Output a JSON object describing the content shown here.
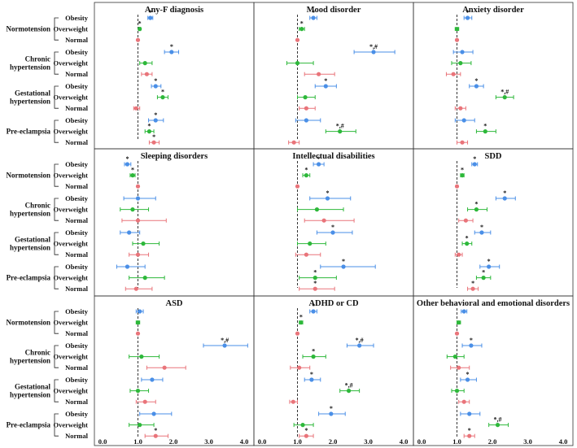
{
  "chart_data": {
    "type": "forest",
    "groups": [
      "Normotension",
      "Chronic hypertension",
      "Gestational hypertension",
      "Pre-eclampsia"
    ],
    "group_lines": [
      [
        "Normotension"
      ],
      [
        "Chronic",
        "hypertension"
      ],
      [
        "Gestational",
        "hypertension"
      ],
      [
        "Pre-eclampsia"
      ]
    ],
    "categories": [
      "Obesity",
      "Overweight",
      "Normal"
    ],
    "x_ticks": [
      "0.0",
      "1.0",
      "2.0",
      "3.0",
      "4.0"
    ],
    "xlim": [
      0,
      4
    ],
    "reference_line": 1.0,
    "colors": {
      "Obesity": "#4a8fe7",
      "Overweight": "#2db83a",
      "Normal": "#e9747a"
    },
    "panels": [
      {
        "title": "Any-F diagnosis",
        "rows": [
          {
            "est": 1.35,
            "lo": 1.28,
            "hi": 1.42,
            "mark": "*"
          },
          {
            "est": 1.05,
            "lo": 1.02,
            "hi": 1.08,
            "mark": "*"
          },
          {
            "est": 1.0,
            "lo": 1.0,
            "hi": 1.0,
            "mark": ""
          },
          {
            "est": 1.95,
            "lo": 1.75,
            "hi": 2.15,
            "mark": "*"
          },
          {
            "est": 1.2,
            "lo": 1.05,
            "hi": 1.4,
            "mark": ""
          },
          {
            "est": 1.25,
            "lo": 1.1,
            "hi": 1.4,
            "mark": ""
          },
          {
            "est": 1.5,
            "lo": 1.38,
            "hi": 1.65,
            "mark": "*"
          },
          {
            "est": 1.7,
            "lo": 1.55,
            "hi": 1.85,
            "mark": "*"
          },
          {
            "est": 0.95,
            "lo": 0.88,
            "hi": 1.05,
            "mark": ""
          },
          {
            "est": 1.5,
            "lo": 1.3,
            "hi": 1.72,
            "mark": "*"
          },
          {
            "est": 1.32,
            "lo": 1.2,
            "hi": 1.45,
            "mark": "*"
          },
          {
            "est": 1.45,
            "lo": 1.32,
            "hi": 1.6,
            "mark": "*"
          }
        ]
      },
      {
        "title": "Mood disorder",
        "rows": [
          {
            "est": 1.45,
            "lo": 1.35,
            "hi": 1.55,
            "mark": "*"
          },
          {
            "est": 1.12,
            "lo": 1.05,
            "hi": 1.2,
            "mark": "*"
          },
          {
            "est": 1.0,
            "lo": 1.0,
            "hi": 1.0,
            "mark": ""
          },
          {
            "est": 3.15,
            "lo": 2.6,
            "hi": 3.75,
            "mark": "*,#"
          },
          {
            "est": 1.0,
            "lo": 0.7,
            "hi": 1.45,
            "mark": ""
          },
          {
            "est": 1.6,
            "lo": 1.2,
            "hi": 2.05,
            "mark": ""
          },
          {
            "est": 1.8,
            "lo": 1.5,
            "hi": 2.1,
            "mark": "*"
          },
          {
            "est": 1.22,
            "lo": 1.0,
            "hi": 1.5,
            "mark": ""
          },
          {
            "est": 1.25,
            "lo": 1.05,
            "hi": 1.5,
            "mark": ""
          },
          {
            "est": 1.25,
            "lo": 0.95,
            "hi": 1.65,
            "mark": ""
          },
          {
            "est": 2.2,
            "lo": 1.8,
            "hi": 2.65,
            "mark": "*,#"
          },
          {
            "est": 0.9,
            "lo": 0.75,
            "hi": 1.05,
            "mark": ""
          }
        ]
      },
      {
        "title": "Anxiety disorder",
        "rows": [
          {
            "est": 1.3,
            "lo": 1.2,
            "hi": 1.42,
            "mark": "*"
          },
          {
            "est": 1.0,
            "lo": 0.95,
            "hi": 1.05,
            "mark": ""
          },
          {
            "est": 1.0,
            "lo": 1.0,
            "hi": 1.0,
            "mark": ""
          },
          {
            "est": 1.15,
            "lo": 0.9,
            "hi": 1.45,
            "mark": ""
          },
          {
            "est": 1.1,
            "lo": 0.85,
            "hi": 1.4,
            "mark": ""
          },
          {
            "est": 0.9,
            "lo": 0.7,
            "hi": 1.1,
            "mark": ""
          },
          {
            "est": 1.55,
            "lo": 1.35,
            "hi": 1.75,
            "mark": "*"
          },
          {
            "est": 2.35,
            "lo": 2.1,
            "hi": 2.6,
            "mark": "*,#"
          },
          {
            "est": 1.1,
            "lo": 0.95,
            "hi": 1.25,
            "mark": ""
          },
          {
            "est": 1.2,
            "lo": 0.95,
            "hi": 1.5,
            "mark": ""
          },
          {
            "est": 1.8,
            "lo": 1.55,
            "hi": 2.1,
            "mark": "*"
          },
          {
            "est": 1.15,
            "lo": 1.0,
            "hi": 1.3,
            "mark": ""
          }
        ]
      },
      {
        "title": "Sleeping disorders",
        "rows": [
          {
            "est": 0.7,
            "lo": 0.62,
            "hi": 0.8,
            "mark": "*"
          },
          {
            "est": 0.85,
            "lo": 0.78,
            "hi": 0.92,
            "mark": "*"
          },
          {
            "est": 1.0,
            "lo": 1.0,
            "hi": 1.0,
            "mark": ""
          },
          {
            "est": 1.0,
            "lo": 0.6,
            "hi": 1.5,
            "mark": ""
          },
          {
            "est": 0.85,
            "lo": 0.5,
            "hi": 1.3,
            "mark": ""
          },
          {
            "est": 1.0,
            "lo": 0.55,
            "hi": 1.8,
            "mark": ""
          },
          {
            "est": 0.75,
            "lo": 0.5,
            "hi": 1.05,
            "mark": ""
          },
          {
            "est": 1.15,
            "lo": 0.85,
            "hi": 1.6,
            "mark": ""
          },
          {
            "est": 1.0,
            "lo": 0.75,
            "hi": 1.3,
            "mark": ""
          },
          {
            "est": 0.7,
            "lo": 0.4,
            "hi": 1.2,
            "mark": ""
          },
          {
            "est": 1.2,
            "lo": 0.75,
            "hi": 1.75,
            "mark": ""
          },
          {
            "est": 0.95,
            "lo": 0.65,
            "hi": 1.4,
            "mark": ""
          }
        ]
      },
      {
        "title": "Intellectual disabilities",
        "rows": [
          {
            "est": 1.6,
            "lo": 1.45,
            "hi": 1.75,
            "mark": "*"
          },
          {
            "est": 1.25,
            "lo": 1.15,
            "hi": 1.35,
            "mark": "*"
          },
          {
            "est": 1.0,
            "lo": 1.0,
            "hi": 1.0,
            "mark": ""
          },
          {
            "est": 1.85,
            "lo": 1.35,
            "hi": 2.5,
            "mark": "*"
          },
          {
            "est": 1.55,
            "lo": 1.0,
            "hi": 2.3,
            "mark": ""
          },
          {
            "est": 1.75,
            "lo": 1.2,
            "hi": 2.6,
            "mark": ""
          },
          {
            "est": 2.0,
            "lo": 1.55,
            "hi": 2.55,
            "mark": "*"
          },
          {
            "est": 1.35,
            "lo": 1.0,
            "hi": 1.8,
            "mark": ""
          },
          {
            "est": 1.25,
            "lo": 0.95,
            "hi": 1.65,
            "mark": ""
          },
          {
            "est": 2.3,
            "lo": 1.65,
            "hi": 3.2,
            "mark": "*"
          },
          {
            "est": 1.5,
            "lo": 1.05,
            "hi": 2.1,
            "mark": "*"
          },
          {
            "est": 1.5,
            "lo": 1.05,
            "hi": 2.05,
            "mark": "*"
          }
        ]
      },
      {
        "title": "SDD",
        "rows": [
          {
            "est": 1.5,
            "lo": 1.42,
            "hi": 1.58,
            "mark": "*"
          },
          {
            "est": 1.15,
            "lo": 1.1,
            "hi": 1.2,
            "mark": "*"
          },
          {
            "est": 1.0,
            "lo": 1.0,
            "hi": 1.0,
            "mark": ""
          },
          {
            "est": 2.35,
            "lo": 2.1,
            "hi": 2.65,
            "mark": "*"
          },
          {
            "est": 1.55,
            "lo": 1.3,
            "hi": 1.85,
            "mark": "*"
          },
          {
            "est": 1.25,
            "lo": 1.05,
            "hi": 1.45,
            "mark": ""
          },
          {
            "est": 1.7,
            "lo": 1.5,
            "hi": 1.95,
            "mark": "*"
          },
          {
            "est": 1.28,
            "lo": 1.15,
            "hi": 1.42,
            "mark": "*"
          },
          {
            "est": 1.05,
            "lo": 0.95,
            "hi": 1.15,
            "mark": ""
          },
          {
            "est": 1.9,
            "lo": 1.65,
            "hi": 2.2,
            "mark": "*"
          },
          {
            "est": 1.75,
            "lo": 1.55,
            "hi": 1.95,
            "mark": "*"
          },
          {
            "est": 1.45,
            "lo": 1.3,
            "hi": 1.6,
            "mark": "*"
          }
        ]
      },
      {
        "title": "ASD",
        "rows": [
          {
            "est": 1.05,
            "lo": 0.95,
            "hi": 1.15,
            "mark": ""
          },
          {
            "est": 1.0,
            "lo": 0.95,
            "hi": 1.05,
            "mark": ""
          },
          {
            "est": 1.0,
            "lo": 1.0,
            "hi": 1.0,
            "mark": ""
          },
          {
            "est": 3.45,
            "lo": 2.85,
            "hi": 4.1,
            "mark": "*,#"
          },
          {
            "est": 1.1,
            "lo": 0.75,
            "hi": 1.6,
            "mark": ""
          },
          {
            "est": 1.75,
            "lo": 1.25,
            "hi": 2.35,
            "mark": ""
          },
          {
            "est": 1.4,
            "lo": 1.1,
            "hi": 1.7,
            "mark": ""
          },
          {
            "est": 1.0,
            "lo": 0.78,
            "hi": 1.3,
            "mark": ""
          },
          {
            "est": 1.2,
            "lo": 0.95,
            "hi": 1.5,
            "mark": ""
          },
          {
            "est": 1.45,
            "lo": 1.05,
            "hi": 1.95,
            "mark": ""
          },
          {
            "est": 1.05,
            "lo": 0.75,
            "hi": 1.45,
            "mark": ""
          },
          {
            "est": 1.5,
            "lo": 1.2,
            "hi": 1.85,
            "mark": "*"
          }
        ]
      },
      {
        "title": "ADHD or CD",
        "rows": [
          {
            "est": 1.45,
            "lo": 1.35,
            "hi": 1.55,
            "mark": "*"
          },
          {
            "est": 1.1,
            "lo": 1.05,
            "hi": 1.15,
            "mark": "*"
          },
          {
            "est": 1.0,
            "lo": 1.0,
            "hi": 1.0,
            "mark": ""
          },
          {
            "est": 2.75,
            "lo": 2.4,
            "hi": 3.15,
            "mark": "*,#"
          },
          {
            "est": 1.45,
            "lo": 1.15,
            "hi": 1.8,
            "mark": "*"
          },
          {
            "est": 1.05,
            "lo": 0.8,
            "hi": 1.35,
            "mark": ""
          },
          {
            "est": 1.4,
            "lo": 1.2,
            "hi": 1.65,
            "mark": "*"
          },
          {
            "est": 2.45,
            "lo": 2.2,
            "hi": 2.75,
            "mark": "*,#"
          },
          {
            "est": 0.88,
            "lo": 0.78,
            "hi": 1.0,
            "mark": ""
          },
          {
            "est": 1.95,
            "lo": 1.6,
            "hi": 2.35,
            "mark": "*"
          },
          {
            "est": 1.15,
            "lo": 0.9,
            "hi": 1.45,
            "mark": ""
          },
          {
            "est": 1.25,
            "lo": 1.05,
            "hi": 1.45,
            "mark": "*"
          }
        ]
      },
      {
        "title": "Other behavioral and emotional disorders",
        "rows": [
          {
            "est": 1.2,
            "lo": 1.12,
            "hi": 1.28,
            "mark": ""
          },
          {
            "est": 1.05,
            "lo": 1.0,
            "hi": 1.1,
            "mark": ""
          },
          {
            "est": 1.0,
            "lo": 1.0,
            "hi": 1.0,
            "mark": ""
          },
          {
            "est": 1.4,
            "lo": 1.15,
            "hi": 1.7,
            "mark": "*"
          },
          {
            "est": 0.95,
            "lo": 0.72,
            "hi": 1.2,
            "mark": ""
          },
          {
            "est": 1.05,
            "lo": 0.82,
            "hi": 1.35,
            "mark": ""
          },
          {
            "est": 1.3,
            "lo": 1.1,
            "hi": 1.55,
            "mark": "*"
          },
          {
            "est": 1.0,
            "lo": 0.85,
            "hi": 1.2,
            "mark": ""
          },
          {
            "est": 1.2,
            "lo": 1.05,
            "hi": 1.35,
            "mark": ""
          },
          {
            "est": 1.35,
            "lo": 1.1,
            "hi": 1.65,
            "mark": ""
          },
          {
            "est": 2.15,
            "lo": 1.9,
            "hi": 2.45,
            "mark": "*,#"
          },
          {
            "est": 1.35,
            "lo": 1.2,
            "hi": 1.5,
            "mark": "*"
          }
        ]
      }
    ]
  }
}
